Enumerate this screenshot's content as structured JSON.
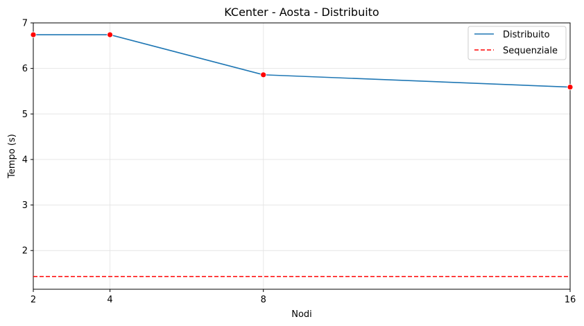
{
  "chart_data": {
    "type": "line",
    "title": "KCenter - Aosta - Distribuito",
    "xlabel": "Nodi",
    "ylabel": "Tempo (s)",
    "x": [
      2,
      4,
      8,
      16
    ],
    "x_ticks": [
      "2",
      "4",
      "8",
      "16"
    ],
    "y_ticks": [
      "2",
      "3",
      "4",
      "5",
      "6",
      "7"
    ],
    "xlim": [
      2,
      16
    ],
    "ylim": [
      1.15,
      7.0
    ],
    "grid": true,
    "legend_position": "top-right",
    "series": [
      {
        "name": "Distribuito",
        "values": [
          6.74,
          6.74,
          5.86,
          5.59
        ],
        "color": "#1f77b4",
        "marker_color": "#ff0000",
        "style": "solid"
      },
      {
        "name": "Sequenziale",
        "values": [
          1.43,
          1.43,
          1.43,
          1.43
        ],
        "color": "#ff0000",
        "style": "dashed"
      }
    ]
  }
}
